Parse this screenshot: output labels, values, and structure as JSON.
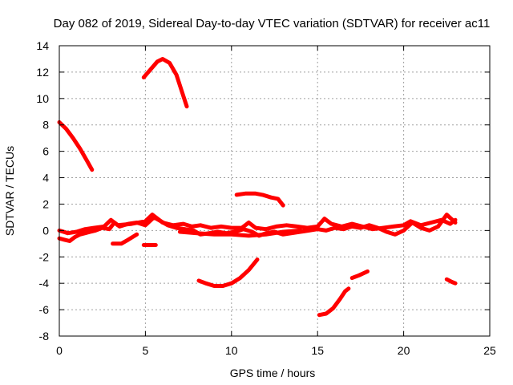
{
  "chart_data": {
    "type": "line",
    "title": "Day 082 of 2019, Sidereal Day-to-day VTEC variation (SDTVAR) for receiver ac11",
    "xlabel": "GPS time / hours",
    "ylabel": "SDTVAR / TECUs",
    "xlim": [
      0,
      25
    ],
    "ylim": [
      -8,
      14
    ],
    "xticks": [
      0,
      5,
      10,
      15,
      20,
      25
    ],
    "yticks": [
      -8,
      -6,
      -4,
      -2,
      0,
      2,
      4,
      6,
      8,
      10,
      12,
      14
    ],
    "grid": true,
    "color": "#ff0000",
    "series": [
      {
        "name": "seg-1",
        "points": [
          [
            0,
            8.2
          ],
          [
            0.4,
            7.7
          ],
          [
            0.8,
            7.0
          ],
          [
            1.2,
            6.2
          ],
          [
            1.6,
            5.3
          ],
          [
            1.9,
            4.6
          ]
        ]
      },
      {
        "name": "seg-2",
        "points": [
          [
            4.9,
            11.6
          ],
          [
            5.3,
            12.2
          ],
          [
            5.7,
            12.8
          ],
          [
            6.0,
            13.0
          ],
          [
            6.4,
            12.7
          ],
          [
            6.8,
            11.8
          ],
          [
            7.1,
            10.6
          ],
          [
            7.4,
            9.4
          ]
        ]
      },
      {
        "name": "seg-3",
        "points": [
          [
            10.3,
            2.7
          ],
          [
            10.8,
            2.8
          ],
          [
            11.4,
            2.8
          ],
          [
            11.8,
            2.7
          ],
          [
            12.3,
            2.5
          ],
          [
            12.7,
            2.4
          ],
          [
            13.0,
            1.9
          ]
        ]
      },
      {
        "name": "seg-4",
        "points": [
          [
            8.1,
            -3.8
          ],
          [
            8.5,
            -4.0
          ],
          [
            9.0,
            -4.2
          ],
          [
            9.5,
            -4.2
          ],
          [
            10.0,
            -4.0
          ],
          [
            10.5,
            -3.6
          ],
          [
            11.0,
            -3.0
          ],
          [
            11.5,
            -2.2
          ]
        ]
      },
      {
        "name": "seg-5",
        "points": [
          [
            15.1,
            -6.4
          ],
          [
            15.5,
            -6.3
          ],
          [
            15.9,
            -5.9
          ],
          [
            16.3,
            -5.2
          ],
          [
            16.6,
            -4.6
          ],
          [
            16.8,
            -4.4
          ]
        ]
      },
      {
        "name": "seg-6",
        "points": [
          [
            17.0,
            -3.6
          ],
          [
            17.4,
            -3.4
          ],
          [
            17.9,
            -3.1
          ]
        ]
      },
      {
        "name": "seg-7",
        "points": [
          [
            22.5,
            -3.7
          ],
          [
            22.8,
            -3.9
          ],
          [
            23.0,
            -4.0
          ]
        ]
      },
      {
        "name": "seg-8",
        "points": [
          [
            3.1,
            -1.0
          ],
          [
            3.6,
            -1.0
          ],
          [
            4.0,
            -0.7
          ],
          [
            4.5,
            -0.3
          ]
        ]
      },
      {
        "name": "seg-9",
        "points": [
          [
            4.9,
            -1.1
          ],
          [
            5.6,
            -1.1
          ]
        ]
      },
      {
        "name": "seg-10",
        "points": [
          [
            0,
            -0.6
          ],
          [
            0.3,
            -0.7
          ],
          [
            0.6,
            -0.8
          ],
          [
            0.9,
            -0.5
          ],
          [
            1.2,
            -0.3
          ],
          [
            1.5,
            -0.2
          ],
          [
            1.8,
            -0.1
          ],
          [
            2.1,
            0.0
          ],
          [
            2.5,
            0.2
          ],
          [
            2.9,
            0.1
          ],
          [
            3.2,
            0.6
          ],
          [
            3.5,
            0.3
          ],
          [
            4.0,
            0.5
          ],
          [
            4.5,
            0.6
          ],
          [
            5.0,
            0.4
          ],
          [
            5.5,
            1.0
          ],
          [
            5.9,
            0.7
          ],
          [
            6.3,
            0.4
          ],
          [
            6.8,
            0.2
          ],
          [
            7.3,
            0.1
          ],
          [
            7.8,
            0.0
          ],
          [
            8.2,
            -0.3
          ],
          [
            8.7,
            -0.2
          ],
          [
            9.2,
            -0.1
          ],
          [
            9.7,
            -0.2
          ],
          [
            10.2,
            -0.1
          ],
          [
            10.7,
            0.1
          ],
          [
            11.2,
            -0.1
          ],
          [
            11.6,
            -0.4
          ],
          [
            12.0,
            -0.2
          ],
          [
            12.5,
            -0.1
          ],
          [
            13.0,
            -0.3
          ],
          [
            13.5,
            -0.2
          ],
          [
            14.0,
            -0.1
          ],
          [
            14.5,
            0.0
          ],
          [
            15.0,
            0.1
          ],
          [
            15.5,
            0.0
          ],
          [
            16.0,
            0.2
          ],
          [
            16.5,
            0.1
          ],
          [
            17.0,
            0.3
          ],
          [
            17.5,
            0.2
          ],
          [
            18.0,
            0.4
          ],
          [
            18.5,
            0.2
          ],
          [
            19.0,
            -0.1
          ],
          [
            19.5,
            -0.3
          ],
          [
            20.0,
            0.0
          ],
          [
            20.5,
            0.6
          ],
          [
            21.0,
            0.2
          ],
          [
            21.5,
            0.0
          ],
          [
            22.0,
            0.3
          ],
          [
            22.5,
            1.2
          ],
          [
            23.0,
            0.6
          ]
        ]
      },
      {
        "name": "seg-11",
        "points": [
          [
            0,
            0.0
          ],
          [
            0.5,
            -0.2
          ],
          [
            1.0,
            -0.1
          ],
          [
            1.5,
            0.1
          ],
          [
            2.0,
            0.2
          ],
          [
            2.6,
            0.3
          ],
          [
            3.0,
            0.8
          ],
          [
            3.4,
            0.4
          ],
          [
            4.2,
            0.5
          ],
          [
            5.0,
            0.7
          ],
          [
            5.4,
            1.2
          ],
          [
            6.0,
            0.6
          ],
          [
            6.6,
            0.4
          ],
          [
            7.2,
            0.5
          ],
          [
            7.7,
            0.3
          ],
          [
            8.2,
            0.4
          ],
          [
            8.8,
            0.2
          ],
          [
            9.4,
            0.3
          ],
          [
            10.0,
            0.2
          ],
          [
            10.6,
            0.2
          ],
          [
            11.0,
            0.6
          ],
          [
            11.4,
            0.2
          ],
          [
            12.0,
            0.1
          ],
          [
            12.6,
            0.3
          ],
          [
            13.2,
            0.4
          ],
          [
            13.8,
            0.3
          ],
          [
            14.4,
            0.2
          ],
          [
            15.0,
            0.3
          ],
          [
            15.4,
            0.9
          ],
          [
            15.8,
            0.5
          ],
          [
            16.4,
            0.3
          ],
          [
            17.0,
            0.5
          ],
          [
            17.6,
            0.3
          ],
          [
            18.2,
            0.1
          ],
          [
            18.8,
            0.2
          ],
          [
            19.4,
            0.3
          ],
          [
            20.0,
            0.4
          ],
          [
            20.4,
            0.7
          ],
          [
            21.0,
            0.4
          ],
          [
            21.6,
            0.6
          ],
          [
            22.2,
            0.8
          ],
          [
            22.7,
            0.5
          ],
          [
            23.0,
            0.8
          ]
        ]
      },
      {
        "name": "seg-12",
        "points": [
          [
            7.0,
            -0.1
          ],
          [
            8.0,
            -0.2
          ],
          [
            9.0,
            -0.3
          ],
          [
            10.0,
            -0.3
          ],
          [
            11.0,
            -0.4
          ],
          [
            12.0,
            -0.3
          ],
          [
            13.0,
            -0.1
          ],
          [
            14.0,
            0.0
          ]
        ]
      }
    ]
  }
}
